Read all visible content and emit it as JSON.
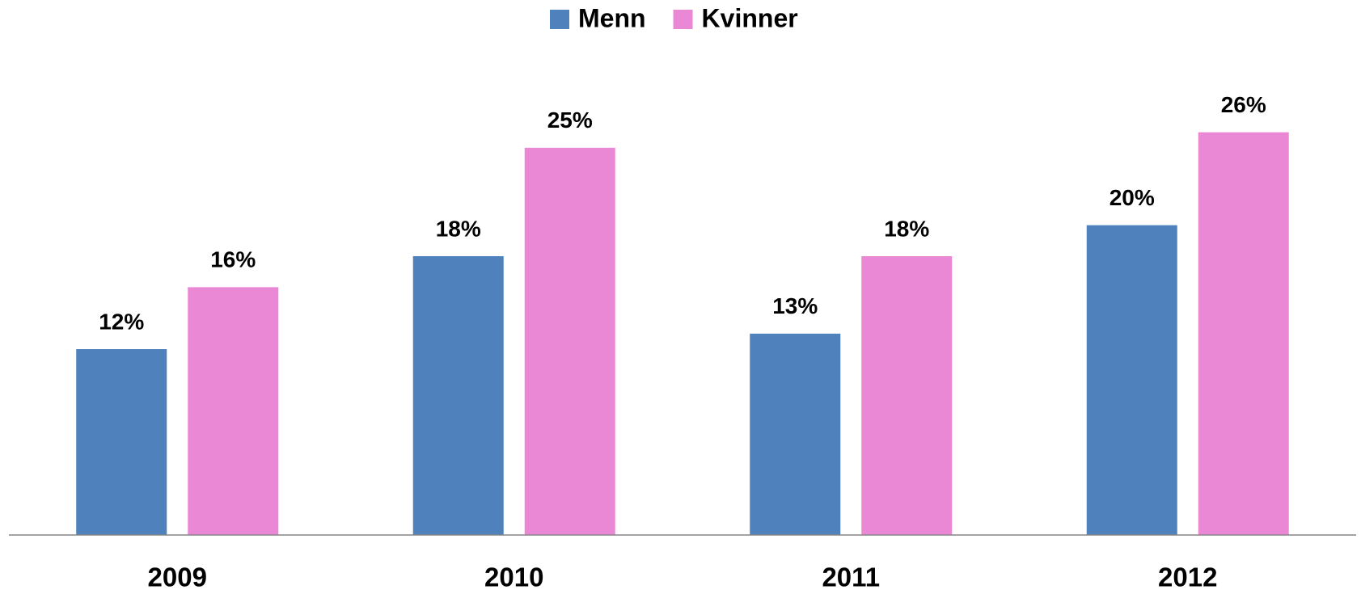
{
  "chart_data": {
    "type": "bar",
    "categories": [
      "2009",
      "2010",
      "2011",
      "2012"
    ],
    "series": [
      {
        "name": "Menn",
        "color": "#4f81bd",
        "values": [
          12,
          18,
          13,
          20
        ],
        "value_labels": [
          "12%",
          "18%",
          "13%",
          "20%"
        ]
      },
      {
        "name": "Kvinner",
        "color": "#eb88d6",
        "values": [
          16,
          25,
          18,
          26
        ],
        "value_labels": [
          "16%",
          "25%",
          "18%",
          "26%"
        ]
      }
    ],
    "ylim": [
      0,
      30
    ],
    "legend": "top"
  }
}
